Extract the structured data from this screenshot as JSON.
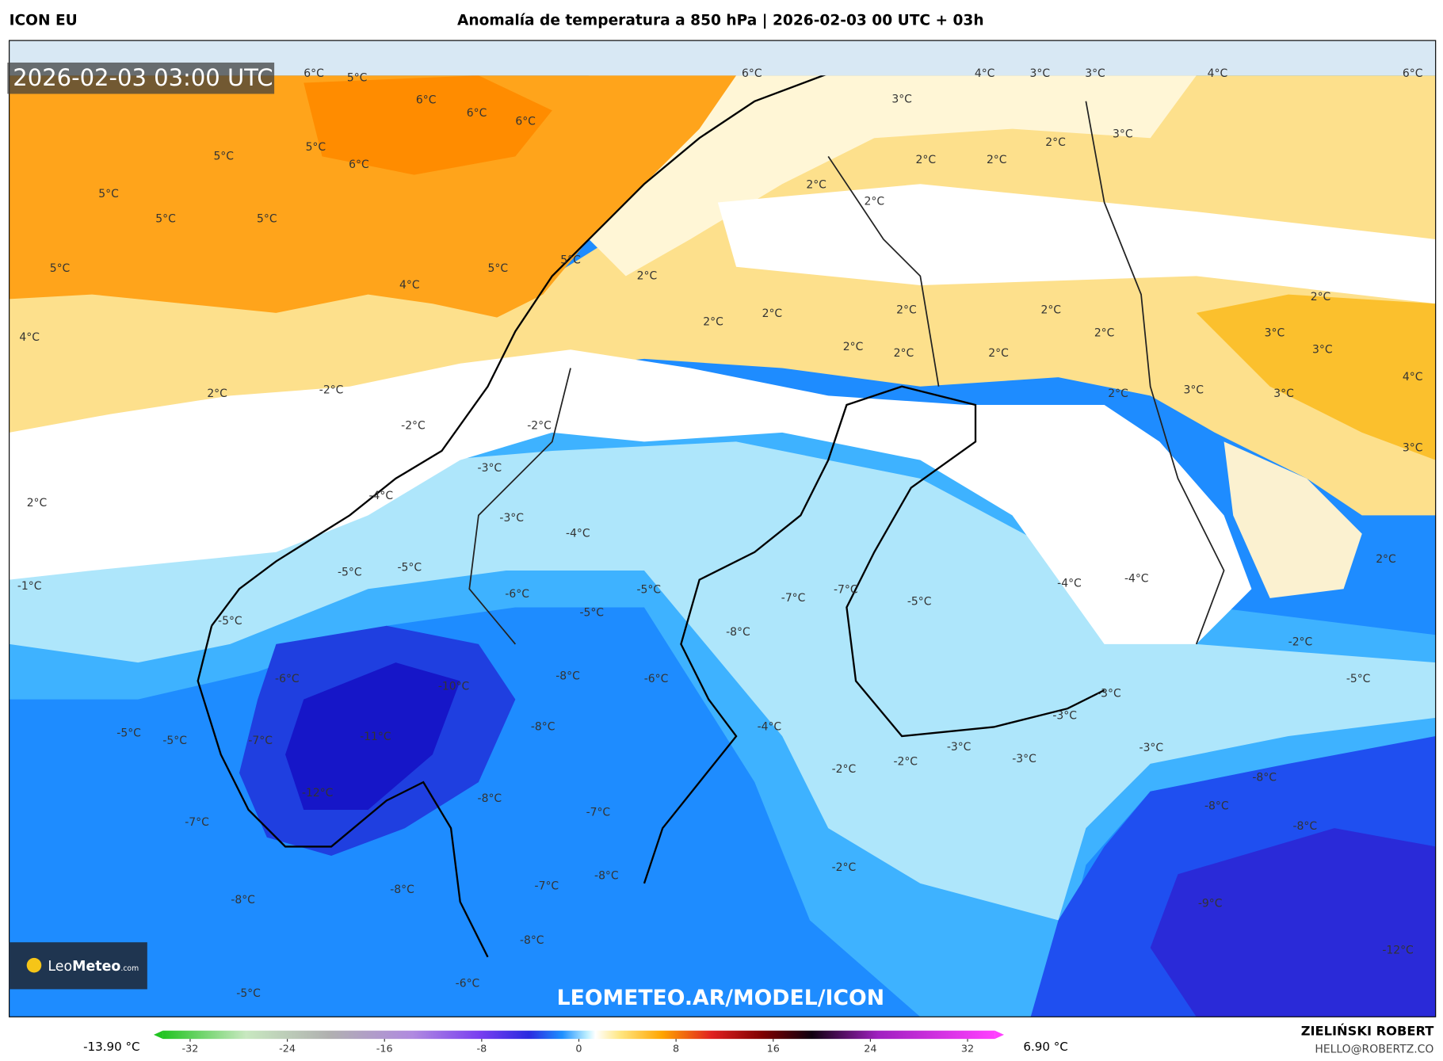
{
  "header": {
    "model": "ICON EU",
    "title": "Anomalía de temperatura a 850 hPa | 2026-02-03 00 UTC + 03h"
  },
  "map": {
    "timestamp": "2026-02-03 03:00 UTC",
    "contour_labels": [
      "6°C",
      "5°C",
      "6°C",
      "6°C",
      "6°C",
      "5°C",
      "5°C",
      "6°C",
      "5°C",
      "5°C",
      "5°C",
      "5°C",
      "5°C",
      "5°C",
      "4°C",
      "4°C",
      "2°C",
      "-2°C",
      "-2°C",
      "-2°C",
      "2°C",
      "-1°C",
      "-3°C",
      "-4°C",
      "-3°C",
      "-4°C",
      "-5°C",
      "-5°C",
      "-6°C",
      "-5°C",
      "-5°C",
      "-5°C",
      "-6°C",
      "-10°C",
      "-8°C",
      "-6°C",
      "-11°C",
      "-5°C",
      "-5°C",
      "-7°C",
      "-8°C",
      "-12°C",
      "-8°C",
      "-7°C",
      "-7°C",
      "-7°C",
      "-8°C",
      "-8°C",
      "-8°C",
      "-8°C",
      "-5°C",
      "-6°C",
      "6°C",
      "4°C",
      "3°C",
      "3°C",
      "4°C",
      "6°C",
      "3°C",
      "2°C",
      "3°C",
      "2°C",
      "2°C",
      "2°C",
      "2°C",
      "2°C",
      "2°C",
      "2°C",
      "2°C",
      "2°C",
      "2°C",
      "2°C",
      "2°C",
      "2°C",
      "3°C",
      "2°C",
      "3°C",
      "4°C",
      "3°C",
      "3°C",
      "2°C",
      "3°C",
      "2°C",
      "-7°C",
      "-7°C",
      "-8°C",
      "-5°C",
      "-4°C",
      "-4°C",
      "-2°C",
      "-5°C",
      "-3°C",
      "-3°C",
      "-4°C",
      "-3°C",
      "-3°C",
      "-3°C",
      "-2°C",
      "-2°C",
      "-8°C",
      "-8°C",
      "-8°C",
      "-2°C",
      "-9°C",
      "-12°C"
    ],
    "logo_name": "Leo",
    "logo_brand": "Meteo",
    "logo_suffix": ".com",
    "watermark": "LEOMETEO.AR/MODEL/ICON"
  },
  "colorbar": {
    "min_label": "-13.90 °C",
    "max_label": "6.90 °C",
    "lim": [
      -35,
      35
    ],
    "ticks": [
      -32,
      -24,
      -16,
      -8,
      0,
      8,
      16,
      24,
      32
    ]
  },
  "credits": {
    "author": "ZIELIŃSKI ROBERT",
    "email": "HELLO@ROBERTZ.CO"
  }
}
